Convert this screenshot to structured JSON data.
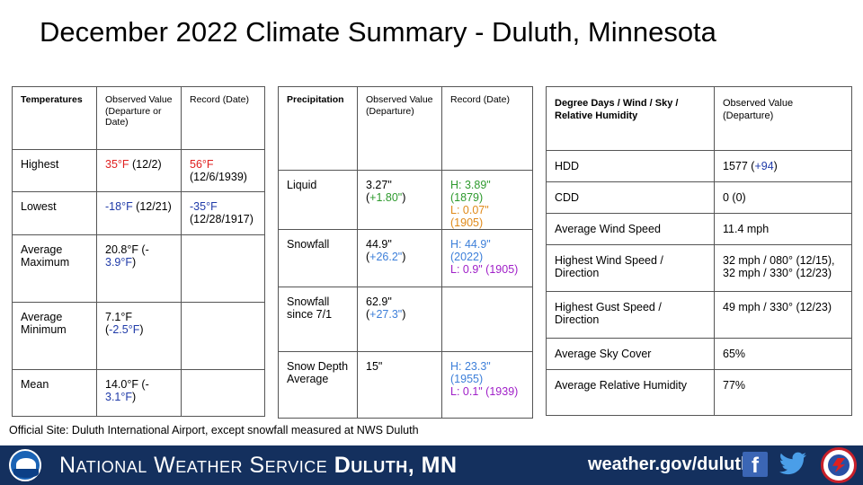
{
  "title": "December 2022 Climate Summary - Duluth, Minnesota",
  "temperatures": {
    "headers": [
      "Temperatures",
      "Observed Value (Departure or Date)",
      "Record (Date)"
    ],
    "highest": {
      "label": "Highest",
      "obs": "35°F",
      "obs_date": " (12/2)",
      "record": "56°F",
      "record_date": "(12/6/1939)"
    },
    "lowest": {
      "label": "Lowest",
      "obs": "-18°F",
      "obs_date": " (12/21)",
      "record": "-35°F",
      "record_date": "(12/28/1917)"
    },
    "avg_max": {
      "label": "Average Maximum",
      "obs_pre": "20.8°F (-",
      "obs_dep": "3.9°F",
      "obs_post": ")"
    },
    "avg_min": {
      "label": "Average Minimum",
      "obs_pre": "7.1°F (",
      "obs_dep": "-2.5°F",
      "obs_post": ")"
    },
    "mean": {
      "label": "Mean",
      "obs_pre": "14.0°F (-",
      "obs_dep": "3.1°F",
      "obs_post": ")"
    }
  },
  "precipitation": {
    "headers": [
      "Precipitation",
      "Observed Value (Departure)",
      "Record (Date)"
    ],
    "liquid": {
      "label": "Liquid",
      "obs": "3.27\" (",
      "dep": "+1.80\"",
      "post": ")",
      "high": "H: 3.89\" (1879)",
      "low": "L: 0.07\" (1905)"
    },
    "snowfall": {
      "label": "Snowfall",
      "obs": "44.9\" (",
      "dep": "+26.2\"",
      "post": ")",
      "high": "H: 44.9\" (2022)",
      "low": "L: 0.9\" (1905)"
    },
    "snowfall_since": {
      "label": "Snowfall since 7/1",
      "obs": "62.9\" (",
      "dep": "+27.3\"",
      "post": ")"
    },
    "snow_depth": {
      "label": "Snow Depth Average",
      "obs": "15\"",
      "high": "H: 23.3\" (1955)",
      "low": "L: 0.1\" (1939)"
    }
  },
  "degree_days": {
    "headers": [
      "Degree Days / Wind / Sky / Relative Humidity",
      "Observed Value (Departure)"
    ],
    "hdd": {
      "label": "HDD",
      "obs": "1577 (",
      "dep": "+94",
      "post": ")"
    },
    "cdd": {
      "label": "CDD",
      "obs": "0 (0)"
    },
    "avg_wind": {
      "label": "Average Wind Speed",
      "obs": "11.4 mph"
    },
    "high_wind": {
      "label": "Highest Wind Speed / Direction",
      "obs1": "32 mph / 080° (12/15),",
      "obs2": "32 mph / 330° (12/23)"
    },
    "high_gust": {
      "label": "Highest Gust Speed / Direction",
      "obs": "49 mph / 330° (12/23)"
    },
    "sky": {
      "label": "Average Sky Cover",
      "obs": "65%"
    },
    "rh": {
      "label": "Average Relative Humidity",
      "obs": "77%"
    }
  },
  "footnote": "Official Site: Duluth International Airport, except snowfall measured at NWS Duluth",
  "footer": {
    "nws_prefix": "National Weather Service ",
    "nws_office": "Duluth, MN",
    "site": "weather.gov/duluth",
    "noaa_logo_text": "NOAA",
    "nws_seal_text": "NATIONAL WEATHER SERVICE"
  }
}
